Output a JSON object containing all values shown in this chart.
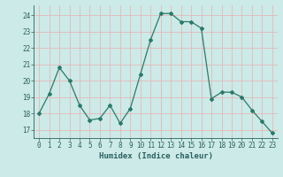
{
  "x": [
    0,
    1,
    2,
    3,
    4,
    5,
    6,
    7,
    8,
    9,
    10,
    11,
    12,
    13,
    14,
    15,
    16,
    17,
    18,
    19,
    20,
    21,
    22,
    23
  ],
  "y": [
    18.0,
    19.2,
    20.8,
    20.0,
    18.5,
    17.6,
    17.7,
    18.5,
    17.4,
    18.3,
    20.4,
    22.5,
    24.1,
    24.1,
    23.6,
    23.6,
    23.2,
    18.9,
    19.3,
    19.3,
    19.0,
    18.2,
    17.5,
    16.8
  ],
  "line_color": "#2a7a6a",
  "marker": "D",
  "markersize": 2.0,
  "linewidth": 0.9,
  "bg_color": "#cceae7",
  "grid_color": "#e8b0b0",
  "tick_color": "#2a6060",
  "xlabel": "Humidex (Indice chaleur)",
  "xlabel_fontsize": 6.5,
  "tick_fontsize": 5.5,
  "ylim": [
    16.5,
    24.6
  ],
  "yticks": [
    17,
    18,
    19,
    20,
    21,
    22,
    23,
    24
  ],
  "xlim": [
    -0.5,
    23.5
  ]
}
